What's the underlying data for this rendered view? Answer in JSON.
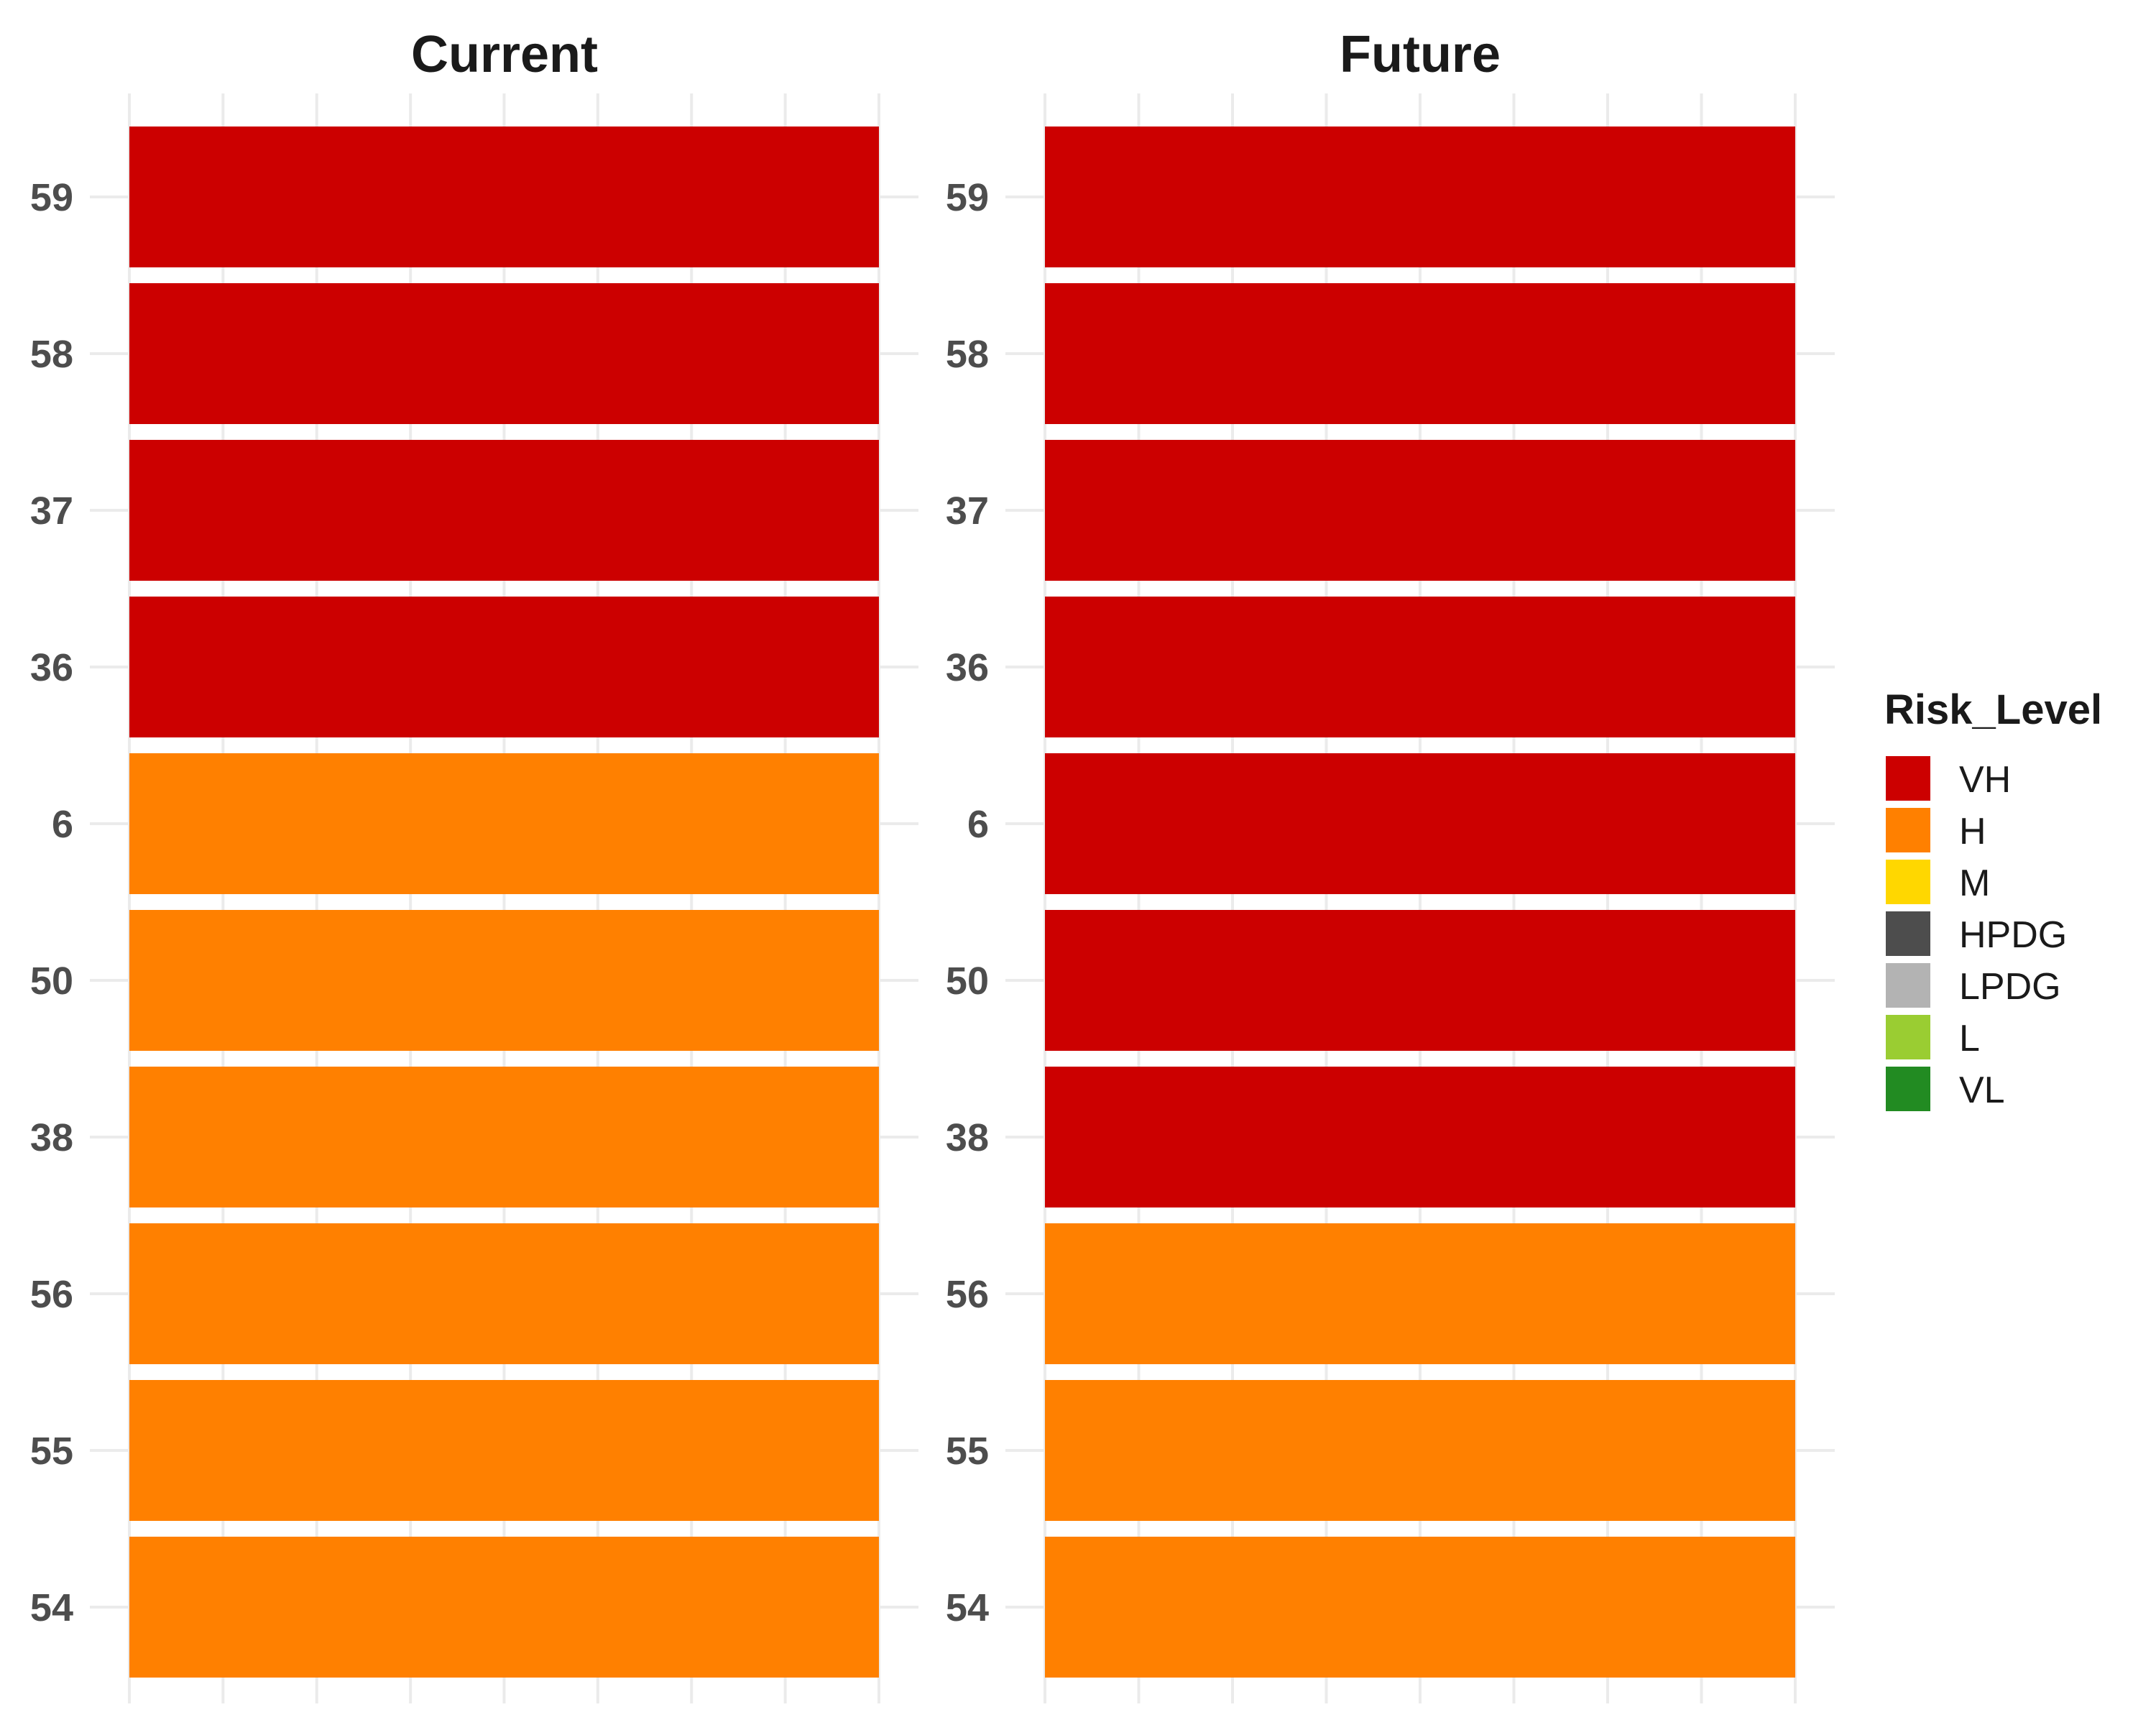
{
  "chart_data": {
    "type": "heatmap",
    "facets": [
      "Current",
      "Future"
    ],
    "y_categories": [
      "59",
      "58",
      "37",
      "36",
      "6",
      "50",
      "38",
      "56",
      "55",
      "54"
    ],
    "values": {
      "Current": [
        "VH",
        "VH",
        "VH",
        "VH",
        "H",
        "H",
        "H",
        "H",
        "H",
        "H"
      ],
      "Future": [
        "VH",
        "VH",
        "VH",
        "VH",
        "VH",
        "VH",
        "VH",
        "H",
        "H",
        "H"
      ]
    },
    "legend": {
      "title": "Risk_Level",
      "placement": "right",
      "items": [
        {
          "label": "VH",
          "color": "#CC0000"
        },
        {
          "label": "H",
          "color": "#FF8000"
        },
        {
          "label": "M",
          "color": "#FFD700"
        },
        {
          "label": "HPDG",
          "color": "#4D4D4D"
        },
        {
          "label": "LPDG",
          "color": "#B3B3B3"
        },
        {
          "label": "L",
          "color": "#9ACD32"
        },
        {
          "label": "VL",
          "color": "#228B22"
        }
      ]
    },
    "grid": true
  }
}
